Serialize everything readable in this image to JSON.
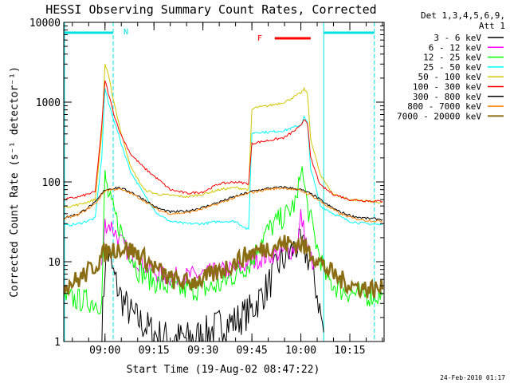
{
  "chart_data": {
    "type": "line",
    "title": "HESSI Observing Summary Count Rates, Corrected",
    "xlabel": "Start Time (19-Aug-02 08:47:22)",
    "ylabel": "Corrected Count Rate (s⁻¹ detector⁻¹)",
    "yscale": "log",
    "ylim": [
      1,
      10000
    ],
    "xlim": [
      "08:47:22",
      "10:25:30"
    ],
    "x_tick_labels": [
      "09:00",
      "09:15",
      "09:30",
      "09:45",
      "10:00",
      "10:15"
    ],
    "y_tick_labels": [
      "1",
      "10",
      "100",
      "1000",
      "10000"
    ],
    "legend_header": [
      "Det 1,3,4,5,6,9,",
      "Att 1"
    ],
    "legend_placement": "right",
    "annotations": {
      "night_label": "N",
      "flare_label": "F",
      "night_bars": [
        [
          "08:47:22",
          "09:02:30"
        ],
        [
          "10:07:00",
          "10:22:30"
        ]
      ],
      "flare_bar": [
        "09:52:00",
        "10:03:00"
      ]
    },
    "series": [
      {
        "name": "3 - 6 keV",
        "color": "#000000",
        "x": [
          "08:59",
          "09:00",
          "09:01",
          "09:03",
          "09:05",
          "09:08",
          "09:12",
          "09:16",
          "09:20",
          "09:25",
          "09:30",
          "09:35",
          "09:40",
          "09:45",
          "09:50",
          "09:53",
          "09:56",
          "09:59",
          "10:01",
          "10:03",
          "10:05",
          "10:07"
        ],
        "values": [
          1.2,
          9,
          12,
          6,
          3.5,
          2.2,
          1.6,
          1.2,
          1.1,
          1.1,
          1.2,
          1.6,
          1.8,
          2.5,
          5,
          9,
          12,
          16,
          14,
          10,
          4,
          1.3
        ]
      },
      {
        "name": "6 - 12 keV",
        "color": "#ff00ff",
        "x": [
          "08:59",
          "09:00",
          "09:02",
          "09:04",
          "09:06",
          "09:09",
          "09:12",
          "09:16",
          "09:20",
          "09:25",
          "09:30",
          "09:35",
          "09:40",
          "09:45",
          "09:50",
          "09:54",
          "09:57",
          "09:59",
          "10:00",
          "10:02",
          "10:04"
        ],
        "values": [
          9,
          30,
          28,
          20,
          15,
          11,
          9,
          7,
          6.5,
          6.5,
          7,
          7.5,
          8,
          10,
          12,
          13,
          14,
          16,
          38,
          15,
          9
        ]
      },
      {
        "name": "12 - 25 keV",
        "color": "#00ff00",
        "x": [
          "08:47",
          "08:55",
          "08:59",
          "09:00",
          "09:01",
          "09:02",
          "09:04",
          "09:07",
          "09:10",
          "09:14",
          "09:18",
          "09:22",
          "09:26",
          "09:30",
          "09:35",
          "09:40",
          "09:45",
          "09:48",
          "09:52",
          "09:56",
          "09:59",
          "10:00",
          "10:02",
          "10:05",
          "10:08",
          "10:12",
          "10:16",
          "10:20",
          "10:25"
        ],
        "values": [
          3.5,
          3.2,
          3,
          120,
          70,
          50,
          30,
          15,
          8,
          6,
          5,
          4.5,
          4.5,
          4.5,
          5,
          7,
          10,
          20,
          30,
          40,
          60,
          170,
          50,
          15,
          6,
          4.5,
          4,
          3.8,
          3.8
        ]
      },
      {
        "name": "25 - 50 keV",
        "color": "#00ffff",
        "x": [
          "08:47",
          "08:52",
          "08:57",
          "08:59",
          "09:00",
          "09:01",
          "09:03",
          "09:05",
          "09:08",
          "09:12",
          "09:16",
          "09:20",
          "09:25",
          "09:30",
          "09:35",
          "09:40",
          "09:44",
          "09:45",
          "09:46",
          "09:50",
          "09:55",
          "10:00",
          "10:01",
          "10:02",
          "10:03",
          "10:06",
          "10:10",
          "10:15",
          "10:20",
          "10:25"
        ],
        "values": [
          28,
          30,
          35,
          200,
          1500,
          1000,
          550,
          300,
          130,
          70,
          40,
          32,
          30,
          30,
          32,
          32,
          25,
          400,
          420,
          420,
          440,
          520,
          650,
          550,
          150,
          50,
          40,
          32,
          30,
          29
        ]
      },
      {
        "name": "50 - 100 keV",
        "color": "#d2c800",
        "x": [
          "08:47",
          "08:52",
          "08:57",
          "08:59",
          "09:00",
          "09:01",
          "09:03",
          "09:05",
          "09:08",
          "09:12",
          "09:16",
          "09:20",
          "09:25",
          "09:30",
          "09:35",
          "09:40",
          "09:44",
          "09:45",
          "09:46",
          "09:50",
          "09:55",
          "10:00",
          "10:01",
          "10:02",
          "10:03",
          "10:06",
          "10:10",
          "10:15",
          "10:20",
          "10:25"
        ],
        "values": [
          48,
          52,
          60,
          400,
          3000,
          2200,
          900,
          400,
          150,
          80,
          70,
          68,
          65,
          70,
          80,
          85,
          80,
          800,
          850,
          900,
          1000,
          1300,
          1450,
          1300,
          350,
          120,
          70,
          60,
          58,
          55
        ]
      },
      {
        "name": "100 - 300 keV",
        "color": "#ff0000",
        "x": [
          "08:47",
          "08:52",
          "08:57",
          "08:59",
          "09:00",
          "09:01",
          "09:03",
          "09:05",
          "09:08",
          "09:12",
          "09:16",
          "09:20",
          "09:25",
          "09:30",
          "09:35",
          "09:40",
          "09:44",
          "09:45",
          "09:46",
          "09:50",
          "09:55",
          "10:00",
          "10:01",
          "10:02",
          "10:03",
          "10:06",
          "10:10",
          "10:15",
          "10:20",
          "10:25"
        ],
        "values": [
          60,
          65,
          75,
          500,
          1900,
          1300,
          650,
          380,
          220,
          150,
          110,
          80,
          72,
          75,
          95,
          100,
          95,
          300,
          310,
          330,
          360,
          500,
          620,
          560,
          200,
          90,
          70,
          60,
          58,
          57
        ]
      },
      {
        "name": "300 - 800 keV",
        "color": "#000000",
        "x": [
          "08:47",
          "08:52",
          "08:57",
          "09:00",
          "09:04",
          "09:08",
          "09:12",
          "09:16",
          "09:20",
          "09:25",
          "09:30",
          "09:35",
          "09:40",
          "09:45",
          "09:50",
          "09:55",
          "10:00",
          "10:04",
          "10:08",
          "10:12",
          "10:16",
          "10:20",
          "10:25"
        ],
        "values": [
          35,
          40,
          55,
          80,
          85,
          75,
          60,
          47,
          42,
          43,
          48,
          56,
          66,
          76,
          83,
          86,
          80,
          68,
          52,
          42,
          37,
          35,
          34
        ]
      },
      {
        "name": "800 - 7000 keV",
        "color": "#ff8000",
        "x": [
          "08:47",
          "08:52",
          "08:57",
          "09:00",
          "09:04",
          "09:08",
          "09:12",
          "09:16",
          "09:20",
          "09:25",
          "09:30",
          "09:35",
          "09:40",
          "09:45",
          "09:50",
          "09:55",
          "10:00",
          "10:04",
          "10:08",
          "10:12",
          "10:16",
          "10:20",
          "10:25"
        ],
        "values": [
          34,
          39,
          53,
          78,
          82,
          72,
          58,
          45,
          40,
          41,
          46,
          54,
          64,
          74,
          81,
          84,
          78,
          65,
          50,
          40,
          35,
          33,
          32
        ]
      },
      {
        "name": "7000 - 20000 keV",
        "color": "#8b6e14",
        "x": [
          "08:47",
          "08:52",
          "08:57",
          "09:00",
          "09:04",
          "09:08",
          "09:12",
          "09:16",
          "09:20",
          "09:25",
          "09:30",
          "09:35",
          "09:40",
          "09:45",
          "09:50",
          "09:55",
          "10:00",
          "10:04",
          "10:08",
          "10:12",
          "10:16",
          "10:20",
          "10:25"
        ],
        "values": [
          5,
          6,
          9,
          13,
          15,
          14,
          11,
          8,
          6,
          5.5,
          6,
          7.5,
          10,
          13,
          15,
          17,
          16.5,
          12,
          8,
          6,
          5,
          4.6,
          4.5
        ]
      }
    ]
  },
  "footer": {
    "timestamp": "24-Feb-2010 01:17"
  }
}
